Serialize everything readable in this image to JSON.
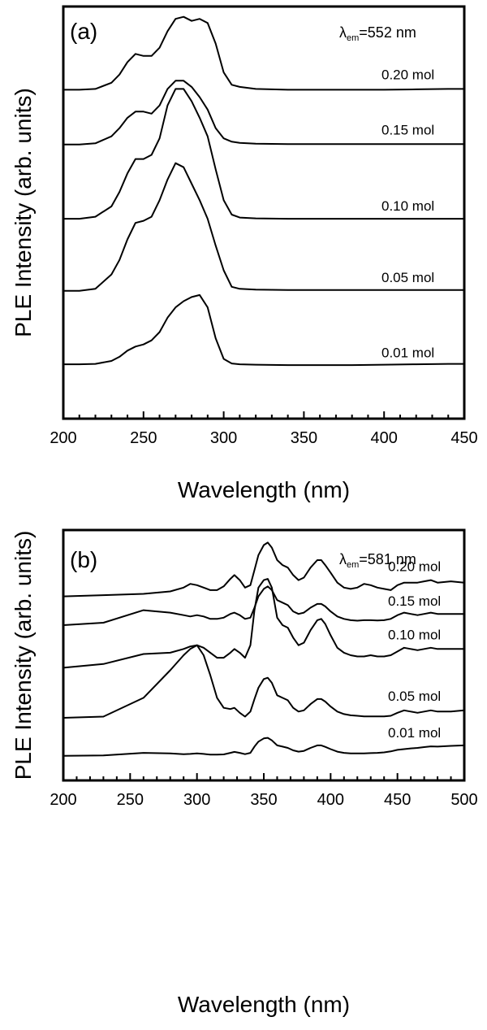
{
  "chart_data": [
    {
      "type": "line",
      "panel": "(a)",
      "annotation": {
        "prefix": "λ",
        "sub": "em",
        "suffix": "=552 nm"
      },
      "xlabel": "Wavelength (nm)",
      "ylabel": "PLE Intensity (arb. units)",
      "xlim": [
        200,
        450
      ],
      "ylim": [
        0,
        100
      ],
      "xticks": [
        200,
        250,
        300,
        350,
        400,
        450
      ],
      "x": [
        200,
        210,
        220,
        230,
        235,
        240,
        245,
        250,
        255,
        260,
        265,
        270,
        275,
        280,
        285,
        290,
        295,
        300,
        305,
        310,
        320,
        340,
        360,
        380,
        400,
        420,
        440,
        450
      ],
      "series": [
        {
          "name": "0.20 mol",
          "values": [
            79.8,
            79.8,
            80.0,
            81.5,
            83.5,
            86.5,
            88.5,
            88.0,
            88.0,
            90.0,
            94.0,
            97.0,
            97.5,
            96.5,
            97.0,
            96.0,
            91.0,
            84.0,
            81.0,
            80.5,
            80.0,
            79.8,
            79.8,
            79.8,
            79.8,
            79.9,
            80.0,
            80.0
          ]
        },
        {
          "name": "0.15 mol",
          "values": [
            66.5,
            66.5,
            66.8,
            68.5,
            70.5,
            73.0,
            74.5,
            74.5,
            74.0,
            76.0,
            80.0,
            82.0,
            82.0,
            80.5,
            78.0,
            75.0,
            70.5,
            68.0,
            67.2,
            66.9,
            66.7,
            66.6,
            66.6,
            66.6,
            66.6,
            66.6,
            66.6,
            66.6
          ]
        },
        {
          "name": "0.10 mol",
          "values": [
            48.5,
            48.5,
            49.0,
            51.5,
            55.0,
            59.5,
            63.0,
            63.0,
            64.0,
            68.0,
            76.0,
            80.0,
            80.0,
            77.0,
            73.0,
            68.5,
            60.5,
            53.0,
            49.5,
            48.8,
            48.6,
            48.5,
            48.5,
            48.5,
            48.5,
            48.5,
            48.5,
            48.5
          ]
        },
        {
          "name": "0.05 mol",
          "values": [
            31.0,
            31.0,
            31.5,
            35.0,
            38.5,
            43.5,
            47.5,
            48.0,
            49.0,
            53.0,
            58.0,
            62.0,
            61.0,
            57.0,
            53.0,
            48.5,
            42.0,
            36.0,
            32.0,
            31.5,
            31.3,
            31.2,
            31.2,
            31.2,
            31.2,
            31.2,
            31.2,
            31.2
          ]
        },
        {
          "name": "0.01 mol",
          "values": [
            13.2,
            13.2,
            13.3,
            14.0,
            15.0,
            16.5,
            17.5,
            18.0,
            19.0,
            21.0,
            24.5,
            27.0,
            28.5,
            29.5,
            30.0,
            27.0,
            19.5,
            14.5,
            13.4,
            13.2,
            13.1,
            13.0,
            13.0,
            13.0,
            13.1,
            13.2,
            13.3,
            13.3
          ]
        }
      ]
    },
    {
      "type": "line",
      "panel": "(b)",
      "annotation": {
        "prefix": "λ",
        "sub": "em",
        "suffix": "=581 nm"
      },
      "xlabel": "Wavelength (nm)",
      "ylabel": "PLE Intensity (arb. units)",
      "xlim": [
        200,
        500
      ],
      "ylim": [
        0,
        100
      ],
      "xticks": [
        200,
        250,
        300,
        350,
        400,
        450,
        500
      ],
      "x": [
        200,
        230,
        260,
        280,
        290,
        295,
        300,
        305,
        310,
        315,
        320,
        325,
        328,
        332,
        336,
        340,
        343,
        346,
        350,
        353,
        356,
        360,
        364,
        368,
        372,
        376,
        380,
        385,
        390,
        393,
        396,
        400,
        405,
        410,
        415,
        420,
        425,
        430,
        435,
        440,
        445,
        450,
        455,
        460,
        465,
        470,
        475,
        480,
        490,
        500
      ],
      "series": [
        {
          "name": "0.20 mol",
          "values": [
            73.5,
            74.0,
            74.5,
            75.5,
            77.0,
            78.5,
            78.0,
            77.0,
            76.0,
            76.0,
            77.5,
            80.5,
            82.0,
            80.0,
            77.0,
            78.0,
            84.0,
            90.0,
            94.0,
            95.0,
            93.0,
            88.0,
            86.0,
            85.0,
            82.0,
            80.0,
            81.0,
            85.0,
            88.0,
            88.0,
            86.0,
            83.0,
            79.0,
            77.0,
            76.5,
            77.0,
            78.5,
            78.0,
            77.0,
            76.5,
            76.0,
            78.0,
            79.0,
            79.0,
            79.0,
            79.5,
            80.0,
            79.0,
            79.5,
            79.0
          ]
        },
        {
          "name": "0.15 mol",
          "values": [
            62.0,
            63.0,
            68.0,
            67.0,
            66.0,
            65.5,
            66.0,
            65.5,
            64.5,
            64.5,
            65.0,
            66.5,
            67.0,
            66.0,
            64.5,
            65.0,
            69.0,
            73.5,
            76.5,
            77.5,
            76.0,
            72.0,
            71.0,
            70.0,
            67.5,
            66.5,
            67.0,
            69.0,
            70.5,
            70.5,
            69.5,
            67.5,
            65.5,
            64.5,
            64.0,
            63.8,
            64.0,
            64.0,
            63.9,
            64.0,
            64.5,
            66.0,
            67.0,
            66.5,
            66.0,
            66.5,
            67.0,
            66.5,
            66.5,
            66.5
          ]
        },
        {
          "name": "0.10 mol",
          "values": [
            45.0,
            46.5,
            50.5,
            51.0,
            52.5,
            53.5,
            54.0,
            53.0,
            51.0,
            49.0,
            49.0,
            51.0,
            52.5,
            51.0,
            49.0,
            54.0,
            68.0,
            77.0,
            80.0,
            80.5,
            77.0,
            65.0,
            62.0,
            61.0,
            57.0,
            54.0,
            55.0,
            60.0,
            64.0,
            64.5,
            62.5,
            58.0,
            53.0,
            51.0,
            50.0,
            49.5,
            49.5,
            50.0,
            49.5,
            49.5,
            50.0,
            51.5,
            53.0,
            52.5,
            52.0,
            52.5,
            53.0,
            52.5,
            52.5,
            52.5
          ]
        },
        {
          "name": "0.05 mol",
          "values": [
            25.0,
            25.5,
            33.0,
            44.0,
            50.0,
            52.5,
            54.0,
            50.0,
            42.0,
            33.0,
            29.0,
            28.5,
            29.0,
            27.0,
            25.5,
            27.5,
            32.5,
            37.0,
            40.5,
            41.0,
            39.0,
            34.0,
            33.0,
            32.0,
            29.0,
            27.5,
            28.0,
            30.5,
            32.5,
            32.5,
            31.5,
            29.5,
            27.5,
            26.5,
            26.0,
            25.8,
            25.6,
            25.6,
            25.6,
            25.6,
            25.8,
            27.0,
            28.0,
            27.5,
            27.0,
            27.5,
            28.0,
            27.5,
            27.5,
            28.0
          ]
        },
        {
          "name": "0.01 mol",
          "values": [
            9.8,
            10.0,
            11.0,
            10.8,
            10.5,
            10.6,
            10.8,
            10.6,
            10.3,
            10.3,
            10.4,
            11.0,
            11.4,
            11.0,
            10.5,
            11.0,
            13.5,
            15.5,
            16.8,
            17.0,
            16.0,
            14.0,
            13.5,
            13.0,
            12.0,
            11.5,
            11.8,
            13.0,
            14.0,
            14.0,
            13.4,
            12.5,
            11.5,
            11.0,
            10.8,
            10.8,
            10.8,
            10.9,
            11.0,
            11.2,
            11.6,
            12.2,
            12.5,
            12.8,
            13.0,
            13.3,
            13.6,
            13.5,
            13.8,
            14.0
          ]
        }
      ]
    }
  ]
}
